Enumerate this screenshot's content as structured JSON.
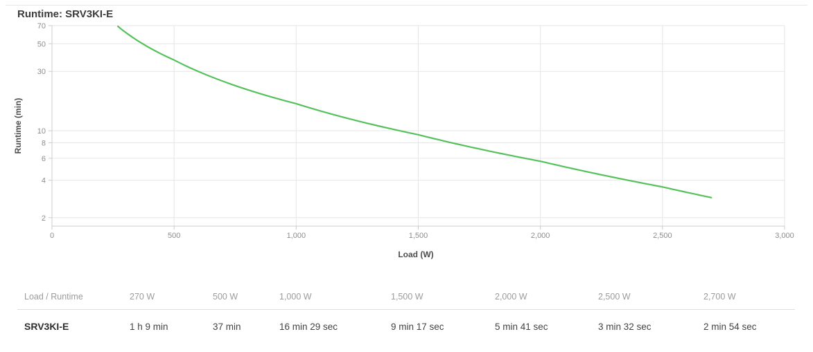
{
  "title": "Runtime: SRV3KI-E",
  "chart_data": {
    "type": "line",
    "title": "Runtime: SRV3KI-E",
    "xlabel": "Load (W)",
    "ylabel": "Runtime (min)",
    "x_axis_scale": "linear",
    "y_axis_scale": "log",
    "xlim": [
      0,
      3000
    ],
    "ylim": [
      1.71,
      70
    ],
    "x_ticks": [
      0,
      500,
      1000,
      1500,
      2000,
      2500,
      3000
    ],
    "y_ticks": [
      70,
      50,
      30,
      10,
      8,
      6,
      4,
      2
    ],
    "grid": true,
    "legend": "none",
    "series": [
      {
        "name": "SRV3KI-E",
        "x": [
          270,
          500,
          1000,
          1500,
          2000,
          2500,
          2700
        ],
        "y": [
          69,
          37,
          16.483,
          9.283,
          5.683,
          3.533,
          2.9
        ]
      }
    ]
  },
  "colors": {
    "line": "#55c15b",
    "grid": "#e6e6e6",
    "axis": "#cccccc",
    "tick_text": "#8c8c8c",
    "axis_title_text": "#4d4d4d"
  },
  "table": {
    "headers": [
      "Load / Runtime",
      "270 W",
      "500 W",
      "1,000 W",
      "1,500 W",
      "2,000 W",
      "2,500 W",
      "2,700 W"
    ],
    "rows": [
      {
        "model": "SRV3KI-E",
        "values": [
          "1 h 9 min",
          "37 min",
          "16 min 29 sec",
          "9 min 17 sec",
          "5 min 41 sec",
          "3 min 32 sec",
          "2 min 54 sec"
        ]
      }
    ]
  }
}
